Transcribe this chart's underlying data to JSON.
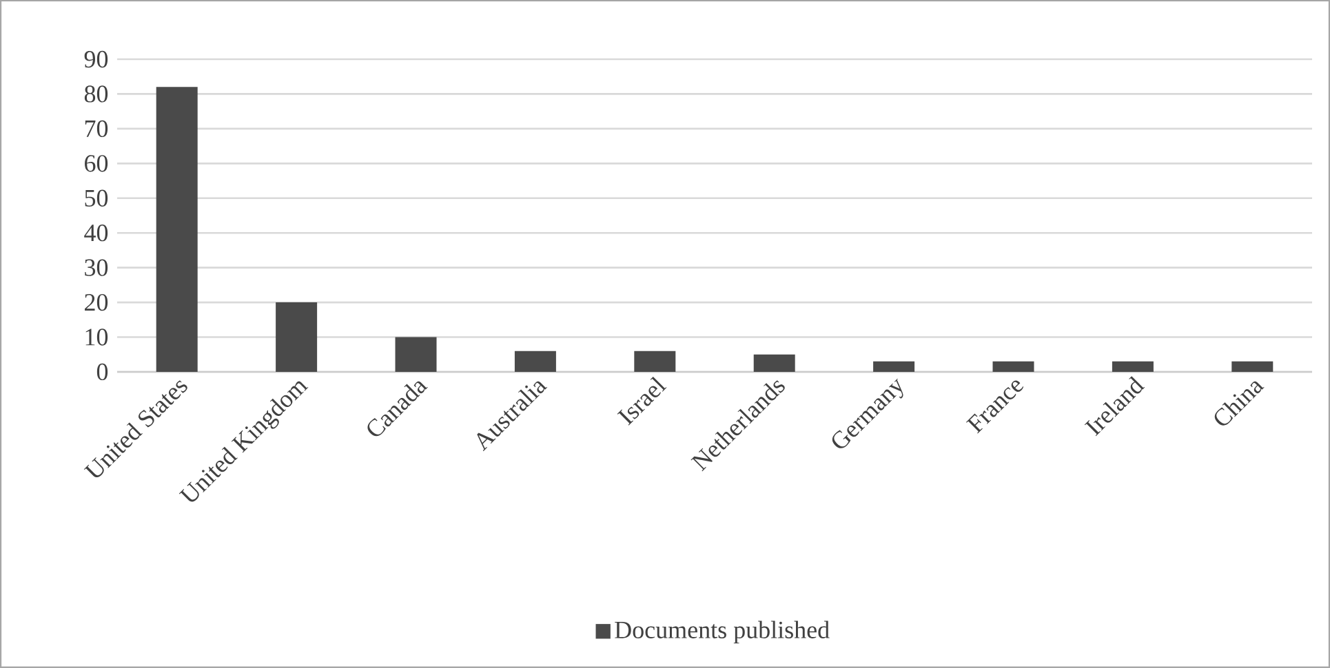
{
  "chart_data": {
    "type": "bar",
    "categories": [
      "United States",
      "United Kingdom",
      "Canada",
      "Australia",
      "Israel",
      "Netherlands",
      "Germany",
      "France",
      "Ireland",
      "China"
    ],
    "series": [
      {
        "name": "Documents published",
        "color": "#4a4a4a",
        "values": [
          82,
          20,
          10,
          6,
          6,
          5,
          3,
          3,
          3,
          3
        ]
      }
    ],
    "ylim": [
      0,
      90
    ],
    "yticks": [
      0,
      10,
      20,
      30,
      40,
      50,
      60,
      70,
      80,
      90
    ],
    "grid": "y",
    "legend": "bottom"
  }
}
